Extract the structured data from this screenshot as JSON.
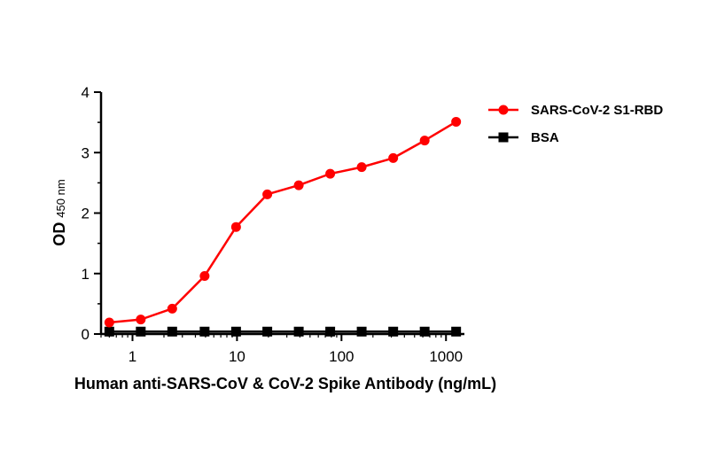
{
  "chart_data": {
    "type": "line",
    "xlabel": "Human anti-SARS-CoV & CoV-2 Spike Antibody (ng/mL)",
    "ylabel_main": "OD",
    "ylabel_sub": "450 nm",
    "xscale": "log",
    "xlim": [
      0.5,
      1500
    ],
    "ylim": [
      0,
      4
    ],
    "x_ticks": [
      1,
      10,
      100,
      1000
    ],
    "x_tick_labels": [
      "1",
      "10",
      "100",
      "1000"
    ],
    "y_ticks": [
      0,
      1,
      2,
      3,
      4
    ],
    "y_tick_labels": [
      "0",
      "1",
      "2",
      "3",
      "4"
    ],
    "grid": false,
    "legend_position": "top-right",
    "x": [
      0.6,
      1.2,
      2.4,
      4.9,
      9.8,
      19.5,
      39,
      78,
      156,
      312.5,
      625,
      1250
    ],
    "series": [
      {
        "name": "SARS-CoV-2 S1-RBD",
        "color": "#ff0000",
        "marker": "circle",
        "values": [
          0.19,
          0.24,
          0.42,
          0.96,
          1.77,
          2.31,
          2.46,
          2.65,
          2.76,
          2.91,
          3.2,
          3.51
        ]
      },
      {
        "name": "BSA",
        "color": "#000000",
        "marker": "square",
        "values": [
          0.04,
          0.04,
          0.04,
          0.04,
          0.04,
          0.04,
          0.04,
          0.04,
          0.04,
          0.04,
          0.04,
          0.04
        ]
      }
    ]
  }
}
